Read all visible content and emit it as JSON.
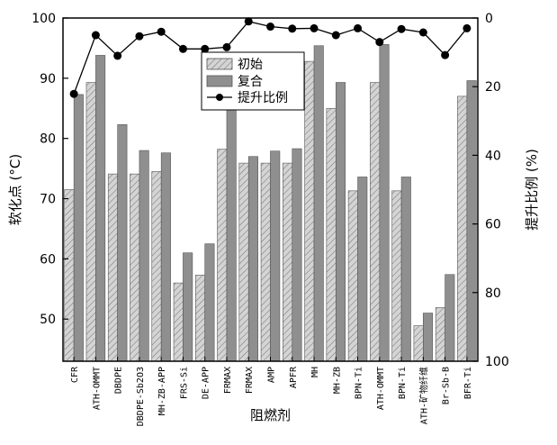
{
  "chart_data": {
    "type": "bar",
    "categories": [
      "CFR",
      "ATH-OMMT",
      "DBDPE",
      "DBDPE-Sb2O3",
      "MH-ZB-APP",
      "FRS-Si",
      "DE-APP",
      "FRMAX",
      "FRMAX",
      "AMP",
      "APFR",
      "MH",
      "MH-ZB",
      "BPN-Ti",
      "ATH-OMMT",
      "BPN-Ti",
      "ATH-矿物纤维",
      "Br-Sb-B",
      "BFR-Ti"
    ],
    "series": [
      {
        "name": "初始",
        "axis": "left",
        "pattern": "hatched",
        "color": "#c8c8c8",
        "values": [
          71.5,
          89.3,
          74.1,
          74.1,
          74.5,
          56.0,
          57.3,
          78.2,
          75.9,
          75.9,
          75.9,
          92.8,
          85.0,
          71.3,
          89.3,
          71.3,
          48.9,
          51.9,
          87.0
        ]
      },
      {
        "name": "复合",
        "axis": "left",
        "pattern": "solid",
        "color": "#8f8f8f",
        "values": [
          87.3,
          93.8,
          82.3,
          78.0,
          77.6,
          61.0,
          62.5,
          85.0,
          77.0,
          77.9,
          78.3,
          95.4,
          89.3,
          73.6,
          95.6,
          73.6,
          51.0,
          57.4,
          89.6
        ]
      },
      {
        "name": "提升比例",
        "axis": "right",
        "type": "line-marker",
        "color": "#000000",
        "values": [
          22.1,
          5.0,
          11.0,
          5.3,
          4.0,
          9.0,
          9.0,
          8.5,
          1.0,
          2.5,
          3.1,
          3.0,
          5.0,
          3.0,
          7.0,
          3.2,
          4.2,
          10.8,
          3.0
        ]
      }
    ],
    "xlabel": "阻燃剂",
    "ylabel": "软化点 (°C)",
    "y2label": "提升比例 (%)",
    "ylim": [
      43,
      100
    ],
    "y2lim": [
      0,
      100
    ],
    "y2_inverted": true,
    "yticks": [
      50,
      60,
      70,
      80,
      90,
      100
    ],
    "y2ticks": [
      0,
      20,
      40,
      60,
      80,
      100
    ],
    "legend_position": "upper-center",
    "grid": false
  }
}
